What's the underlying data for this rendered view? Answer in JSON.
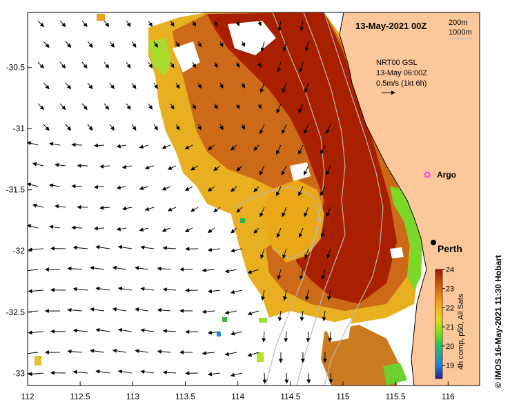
{
  "map": {
    "title": "13-May-2021 00Z",
    "depth_contours": [
      "200m",
      "1000m"
    ],
    "current_source": "NRT00 GSL",
    "current_time": "13-May 06:00Z",
    "current_scale": "0.5m/s (1kt 6h)",
    "places": [
      {
        "name": "Argo",
        "lon": 115.76,
        "lat": -31.46,
        "marker_color": "#ff30ff"
      },
      {
        "name": "Perth",
        "lon": 115.86,
        "lat": -31.95,
        "marker_color": "#000000"
      }
    ],
    "credit": "©  IMOS 16-May-2021 11:30 Hobart"
  },
  "axes": {
    "x_ticks": [
      "112",
      "112.5",
      "113",
      "113.5",
      "114",
      "114.5",
      "115",
      "115.5",
      "116"
    ],
    "y_ticks": [
      "-30.5",
      "-31",
      "-31.5",
      "-32",
      "-32.5",
      "-33"
    ],
    "lon_range": [
      112,
      116.3
    ],
    "lat_range": [
      -33.1,
      -30.05
    ]
  },
  "colorbar": {
    "label": "4h comp, p50, All Sats",
    "ticks": [
      "24",
      "23",
      "22",
      "21",
      "20",
      "19"
    ],
    "range": [
      18.3,
      24
    ],
    "stops": [
      "#1f1f8f",
      "#2a7fd6",
      "#22c06a",
      "#7fe020",
      "#e8d820",
      "#f0a020",
      "#d06010",
      "#a01a00"
    ]
  },
  "colors": {
    "land": "#fcc79a",
    "ocean_bg": "#ffffff",
    "sst_warm": "#a82000",
    "sst_mid": "#cc6a18",
    "sst_cool": "#e8b020",
    "sst_green": "#7cd828",
    "contour": "#b8b8b8"
  },
  "chart_data": {
    "type": "heatmap",
    "title": "13-May-2021 00Z",
    "xlabel": "",
    "ylabel": "",
    "xlim": [
      112,
      116.3
    ],
    "ylim": [
      -33.1,
      -30.05
    ],
    "colorbar_range": [
      18.3,
      24
    ],
    "colorbar_label": "4h comp, p50, All Sats",
    "grid": false
  }
}
